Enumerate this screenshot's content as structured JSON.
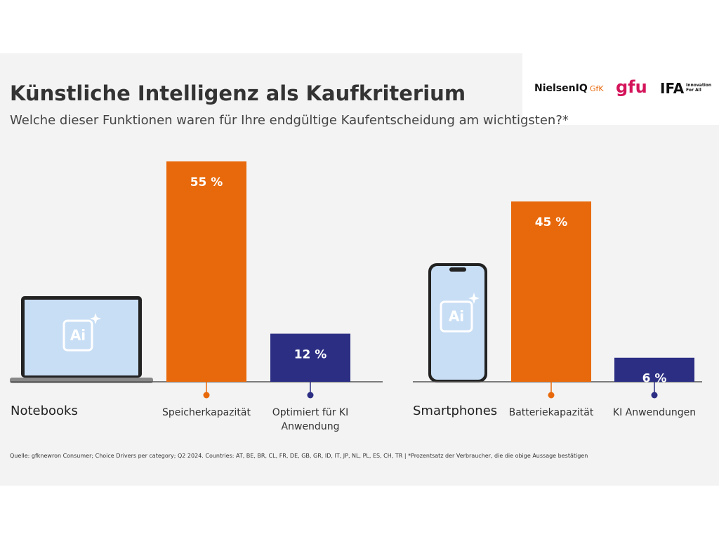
{
  "header": {
    "title": "Künstliche Intelligenz als Kaufkriterium",
    "subtitle": "Welche dieser Funktionen waren für Ihre endgültige Kaufentscheidung am wichtigsten?*"
  },
  "logos": [
    "NielsenIQ",
    "GfK",
    "gfu",
    "IFA",
    "Innovation For All"
  ],
  "device_icon_text": [
    "Ai",
    "Ai"
  ],
  "source": "Quelle: gfknewron Consumer; Choice Drivers per category; Q2 2024. Countries: AT, BE, BR, CL, FR, DE, GB, GR, ID, IT, JP, NL, PL, ES, CH, TR | *Prozentsatz der Verbraucher, die die obige Aussage bestätigen",
  "chart_data": [
    {
      "type": "bar",
      "label": "Notebooks",
      "categories": [
        "Speicherkapazität",
        "Optimiert für KI Anwendung"
      ],
      "values": [
        55,
        12
      ],
      "value_labels": [
        "55 %",
        "12 %"
      ],
      "colors": [
        "#e8690b",
        "#2b2e83"
      ],
      "ylim": [
        0,
        55
      ]
    },
    {
      "type": "bar",
      "label": "Smartphones",
      "categories": [
        "Batteriekapazität",
        "KI Anwendungen"
      ],
      "values": [
        45,
        6
      ],
      "value_labels": [
        "45 %",
        "6 %"
      ],
      "colors": [
        "#e8690b",
        "#2b2e83"
      ],
      "ylim": [
        0,
        55
      ]
    }
  ]
}
